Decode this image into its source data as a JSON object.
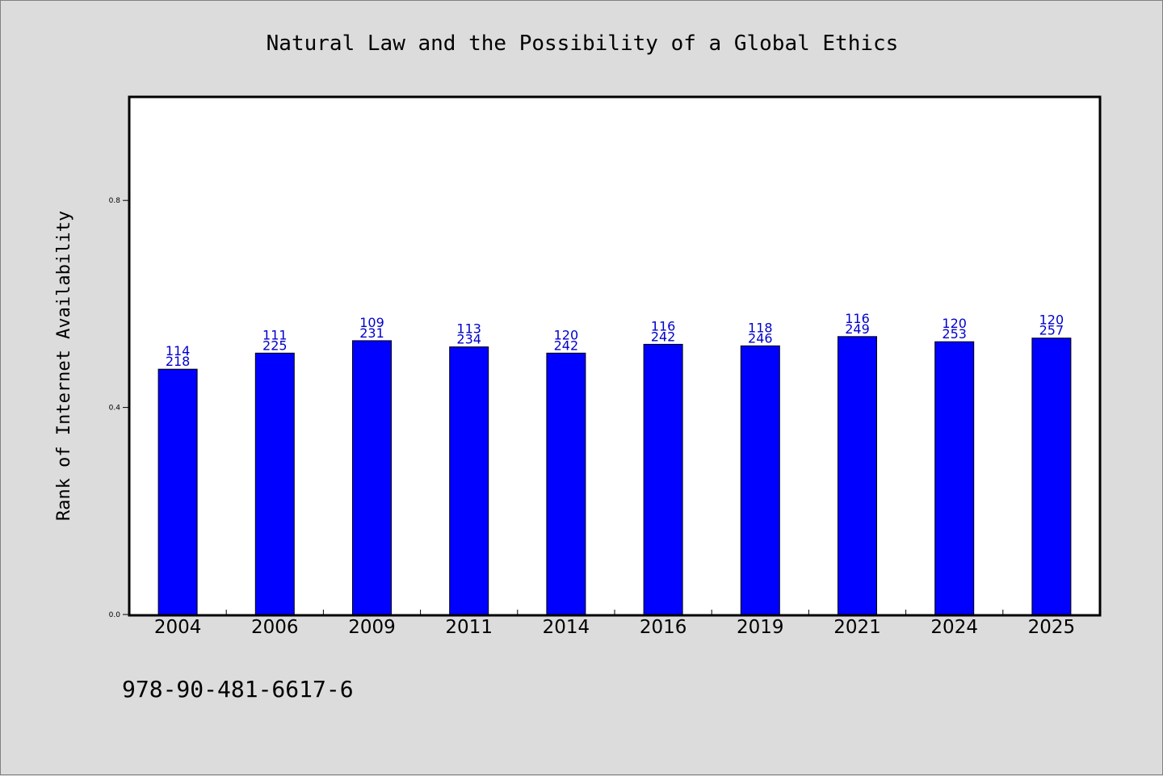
{
  "chart_data": {
    "type": "bar",
    "title": "Natural Law and the Possibility of a Global Ethics",
    "xlabel": "",
    "ylabel": "Rank of Internet Availability",
    "categories": [
      "2004",
      "2006",
      "2009",
      "2011",
      "2014",
      "2016",
      "2019",
      "2021",
      "2024",
      "2025"
    ],
    "values": [
      0.474,
      0.505,
      0.529,
      0.517,
      0.505,
      0.522,
      0.519,
      0.537,
      0.527,
      0.534
    ],
    "bar_labels": [
      {
        "top": "114",
        "bottom": "218"
      },
      {
        "top": "111",
        "bottom": "225"
      },
      {
        "top": "109",
        "bottom": "231"
      },
      {
        "top": "113",
        "bottom": "234"
      },
      {
        "top": "120",
        "bottom": "242"
      },
      {
        "top": "116",
        "bottom": "242"
      },
      {
        "top": "118",
        "bottom": "246"
      },
      {
        "top": "116",
        "bottom": "249"
      },
      {
        "top": "120",
        "bottom": "253"
      },
      {
        "top": "120",
        "bottom": "257"
      }
    ],
    "yticks": [
      0.0,
      0.4,
      0.8
    ],
    "ytick_labels": [
      "0.0",
      "0.4",
      "0.8"
    ],
    "ylim": [
      0,
      1.0
    ],
    "grid": false,
    "legend": "none",
    "colors": {
      "bar": "#0000ff",
      "bar_edge": "#000000",
      "bar_label": "#0000cc",
      "plot_background": "#ffffff",
      "figure_background": "#dcdcdc"
    }
  },
  "footer_text": "978-90-481-6617-6"
}
